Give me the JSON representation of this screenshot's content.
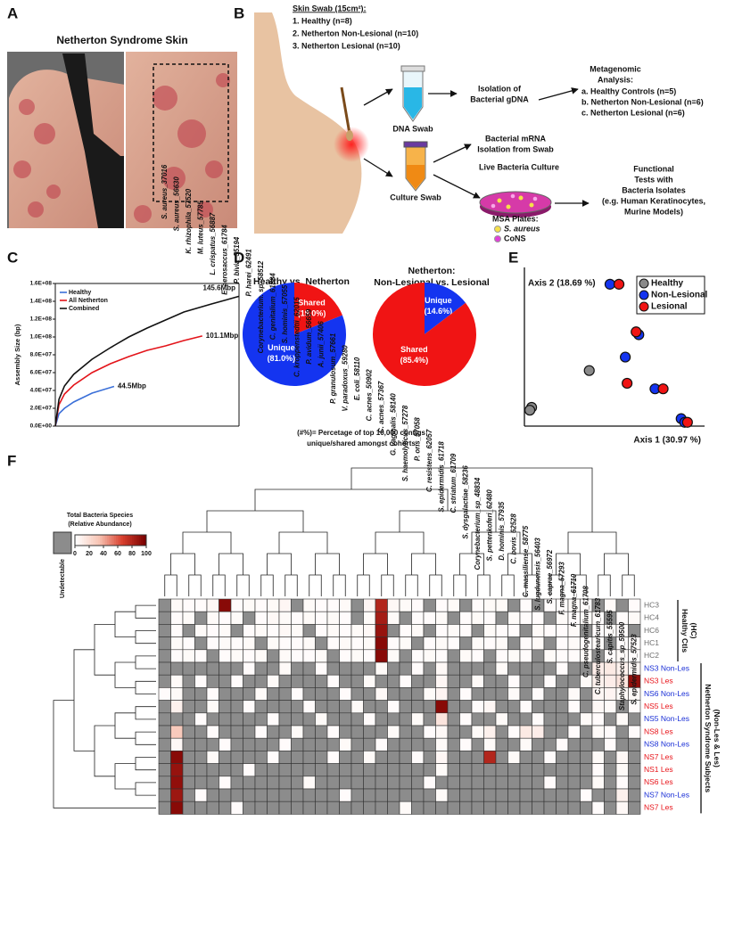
{
  "figure": {
    "a": {
      "panel": "A",
      "title": "Netherton Syndrome Skin"
    },
    "b": {
      "panel": "B",
      "swab_title": "Skin Swab (15cm²):",
      "swab_groups": [
        "1. Healthy (n=8)",
        "2. Netherton Non-Lesional  (n=10)",
        "3. Netherton Lesional  (n=10)"
      ],
      "dna_swab": "DNA Swab",
      "culture_swab": "Culture Swab",
      "gdna": [
        "Isolation of",
        "Bacterial gDNA"
      ],
      "metagenomic": [
        "Metagenomic",
        "Analysis:"
      ],
      "metagenomic_groups": [
        "a. Healthy Controls (n=5)",
        "b. Netherton Non-Lesional (n=6)",
        "c. Netherton Lesional (n=6)"
      ],
      "mrna": [
        "Bacterial mRNA",
        "Isolation from Swab"
      ],
      "culture": "Live Bacteria Culture",
      "msa": "MSA Plates:",
      "msa_items": [
        "S. aureus",
        "CoNS"
      ],
      "functional": [
        "Functional",
        "Tests with",
        "Bacteria Isolates",
        "(e.g. Human Keratinocytes,",
        "Murine Models)"
      ]
    }
  },
  "chart_data": [
    {
      "type": "line",
      "panel": "C",
      "ylabel": "Assembly Size (bp)",
      "xlim": [
        0,
        10
      ],
      "ylim": [
        0,
        160000000
      ],
      "yticks": [
        {
          "value": 0,
          "label": "0.0E+00"
        },
        {
          "value": 20000000,
          "label": "2.0E+07"
        },
        {
          "value": 40000000,
          "label": "4.0E+07"
        },
        {
          "value": 60000000,
          "label": "6.0E+07"
        },
        {
          "value": 80000000,
          "label": "8.0E+07"
        },
        {
          "value": 100000000,
          "label": "1.0E+08"
        },
        {
          "value": 120000000,
          "label": "1.2E+08"
        },
        {
          "value": 140000000,
          "label": "1.4E+08"
        },
        {
          "value": 160000000,
          "label": "1.6E+08"
        }
      ],
      "series": [
        {
          "name": "Healthy",
          "color": "#3a6fd8",
          "end_label": "44.5Mbp",
          "x": [
            0,
            0.2,
            0.5,
            1,
            2,
            3.2
          ],
          "values": [
            0,
            14000000,
            20000000,
            27000000,
            37000000,
            44500000
          ]
        },
        {
          "name": "All Netherton",
          "color": "#e3141a",
          "end_label": "101.1Mbp",
          "x": [
            0,
            0.2,
            0.5,
            1,
            2,
            3,
            4,
            5,
            6,
            7,
            8
          ],
          "values": [
            0,
            24000000,
            36000000,
            46000000,
            60000000,
            70000000,
            78000000,
            85000000,
            90000000,
            96000000,
            101100000
          ]
        },
        {
          "name": "Combined",
          "color": "#111111",
          "end_label": "145.6Mbp",
          "x": [
            0,
            0.2,
            0.5,
            1,
            2,
            3,
            4,
            5,
            6,
            7,
            8.5,
            10
          ],
          "values": [
            0,
            30000000,
            45000000,
            58000000,
            75000000,
            88000000,
            100000000,
            110000000,
            119000000,
            128000000,
            137000000,
            145600000
          ]
        }
      ]
    },
    {
      "type": "pie",
      "panel": "D",
      "title": [
        "Healthy vs. Netherton"
      ],
      "categories": [
        "Shared",
        "Unique"
      ],
      "values": [
        19.0,
        81.0
      ],
      "value_labels": [
        "(19.0%)",
        "(81.0%)"
      ],
      "colors": [
        "#f01414",
        "#1434f0"
      ],
      "note": [
        "(#%)= Percetage of top 10,000 contigs",
        "unique/shared amongst cohorts"
      ]
    },
    {
      "type": "pie",
      "title": [
        "Netherton:",
        "Non-Lesional vs. Lesional"
      ],
      "categories": [
        "Unique",
        "Shared"
      ],
      "values": [
        14.6,
        85.4
      ],
      "value_labels": [
        "(14.6%)",
        "(85.4%)"
      ],
      "colors": [
        "#1434f0",
        "#f01414"
      ]
    },
    {
      "type": "scatter",
      "panel": "E",
      "xlabel": "Axis 1 (30.97 %)",
      "ylabel": "Axis 2 (18.69 %)",
      "xlim": [
        0,
        1
      ],
      "ylim": [
        0,
        1
      ],
      "series": [
        {
          "name": "Healthy",
          "color": "#8a8a8a",
          "x": [
            0.04,
            0.03,
            0.36
          ],
          "values": [
            0.118,
            0.1,
            0.35
          ]
        },
        {
          "name": "Non-Lesional",
          "color": "#1434f0",
          "x": [
            0.475,
            0.635,
            0.56,
            0.725,
            0.87,
            0.89
          ],
          "values": [
            0.894,
            0.576,
            0.435,
            0.235,
            0.047,
            0.024
          ]
        },
        {
          "name": "Lesional",
          "color": "#f01414",
          "x": [
            0.525,
            0.62,
            0.57,
            0.77,
            0.905
          ],
          "values": [
            0.894,
            0.594,
            0.27,
            0.235,
            0.024
          ]
        }
      ]
    },
    {
      "type": "heatmap",
      "panel": "F",
      "colorbar_title": [
        "Total Bacteria Species",
        "(Relative Abundance)"
      ],
      "undetectable_label": "Undetectable",
      "null_color": "#8c8c8c",
      "colormap": [
        "#ffffff",
        "#f7c4b4",
        "#d8402e",
        "#7a0000"
      ],
      "clim": [
        0,
        100
      ],
      "cbar_ticks": [
        0,
        20,
        40,
        60,
        80,
        100
      ],
      "rows": [
        "HC3",
        "HC4",
        "HC6",
        "HC1",
        "HC2",
        "NS3 Non-Les",
        "NS3 Les",
        "NS6 Non-Les",
        "NS5 Les",
        "NS5 Non-Les",
        "NS8 Les",
        "NS8 Non-Les",
        "NS7 Les",
        "NS1 Les",
        "NS6 Les",
        "NS7 Non-Les",
        "NS7 Les"
      ],
      "row_colors": [
        "#6e6e6e",
        "#6e6e6e",
        "#6e6e6e",
        "#6e6e6e",
        "#6e6e6e",
        "#1a2fd6",
        "#e8141a",
        "#1a2fd6",
        "#e8141a",
        "#1a2fd6",
        "#e8141a",
        "#1a2fd6",
        "#e8141a",
        "#e8141a",
        "#e8141a",
        "#1a2fd6",
        "#e8141a"
      ],
      "row_groups": [
        {
          "label": [
            "Healthy Ctls",
            "(HC)"
          ],
          "size": 5
        },
        {
          "label": [
            "Netherton Syndrome Subjects",
            "(Non-Les & Les)"
          ],
          "size": 12
        }
      ],
      "columns": [
        "S. aureus_37016",
        "S. aureus_56630",
        "K. rhizophila_57520",
        "M. luteus_57785",
        "L. crispatus_56887",
        "E. aerosaccus_61784",
        "P. bivia_55194",
        "P. harei_62491",
        "Corynebacterium. sp_58512",
        "C. genitalium_61884",
        "S. hominis_57055",
        "C. kroppenstedtii_62015",
        "P. avidum_56659",
        "A. junii_57406",
        "P. granulosum_57661",
        "V. paradoxus_59280",
        "E. coli_58110",
        "C. acnes_50902",
        "C. acnes_57367",
        "G. vaginalis_58140",
        "S. haemolyticus_57278",
        "P. oris_57058",
        "C. resistens_62057",
        "S. epidermidis_61718",
        "C. striatum_61709",
        "S. dysgalactiae_58236",
        "Corynebacterium_sp_48834",
        "S. pettenkoferi_62480",
        "D. hominis_57935",
        "C. bovis_62528",
        "C. massiliense_58775",
        "S. lugdunensis_56403",
        "S. caprae_56972",
        "F. magna_57293",
        "F. magna_61710",
        "C. pseudogenitalium_61708",
        "C. tuberculostearicum_61783",
        "S. capitis_55595",
        "Staphylococcus_sp_59500",
        "S. epidermidis_57523"
      ],
      "values": [
        [
          null,
          3,
          2,
          2,
          4,
          95,
          2,
          3,
          2,
          3,
          5,
          null,
          3,
          2,
          2,
          3,
          null,
          5,
          80,
          4,
          3,
          2,
          null,
          2,
          3,
          null,
          2,
          3,
          3,
          null,
          2,
          null,
          2,
          2,
          3,
          2,
          null,
          3,
          null,
          2
        ],
        [
          null,
          2,
          3,
          null,
          3,
          2,
          3,
          null,
          2,
          4,
          3,
          2,
          3,
          2,
          3,
          2,
          null,
          3,
          85,
          3,
          null,
          2,
          2,
          3,
          null,
          2,
          3,
          2,
          null,
          3,
          2,
          2,
          null,
          3,
          2,
          3,
          2,
          null,
          2,
          3
        ],
        [
          null,
          2,
          null,
          3,
          2,
          3,
          null,
          2,
          3,
          2,
          4,
          3,
          null,
          2,
          3,
          2,
          3,
          4,
          90,
          null,
          2,
          3,
          null,
          2,
          3,
          2,
          null,
          3,
          2,
          2,
          null,
          3,
          2,
          2,
          3,
          null,
          2,
          3,
          2,
          null
        ],
        [
          null,
          3,
          2,
          null,
          2,
          3,
          2,
          3,
          null,
          3,
          2,
          2,
          3,
          null,
          2,
          3,
          2,
          3,
          95,
          2,
          3,
          null,
          2,
          3,
          2,
          null,
          3,
          2,
          3,
          null,
          2,
          3,
          null,
          2,
          3,
          2,
          3,
          null,
          2,
          2
        ],
        [
          null,
          2,
          3,
          2,
          null,
          2,
          3,
          2,
          3,
          null,
          3,
          2,
          2,
          3,
          null,
          2,
          3,
          2,
          95,
          3,
          null,
          2,
          3,
          2,
          null,
          3,
          2,
          null,
          2,
          3,
          2,
          null,
          3,
          2,
          2,
          3,
          null,
          2,
          3,
          2
        ],
        [
          null,
          null,
          null,
          null,
          null,
          null,
          null,
          2,
          null,
          null,
          3,
          null,
          null,
          2,
          null,
          null,
          null,
          null,
          3,
          null,
          null,
          2,
          null,
          4,
          null,
          null,
          null,
          null,
          3,
          null,
          null,
          null,
          null,
          2,
          null,
          null,
          10,
          12,
          8,
          5
        ],
        [
          null,
          3,
          null,
          2,
          null,
          null,
          2,
          null,
          null,
          3,
          null,
          null,
          null,
          null,
          2,
          null,
          null,
          3,
          null,
          null,
          2,
          null,
          null,
          5,
          null,
          null,
          3,
          null,
          null,
          2,
          null,
          null,
          2,
          null,
          null,
          3,
          8,
          10,
          15,
          92
        ],
        [
          2,
          3,
          null,
          null,
          2,
          null,
          null,
          null,
          3,
          null,
          null,
          2,
          null,
          null,
          null,
          2,
          null,
          null,
          4,
          null,
          null,
          null,
          3,
          6,
          null,
          2,
          null,
          null,
          null,
          3,
          null,
          2,
          null,
          null,
          3,
          null,
          5,
          6,
          3,
          4
        ],
        [
          null,
          8,
          null,
          null,
          3,
          null,
          null,
          2,
          null,
          null,
          null,
          null,
          2,
          null,
          null,
          null,
          3,
          null,
          null,
          2,
          null,
          null,
          null,
          95,
          null,
          null,
          2,
          5,
          null,
          null,
          2,
          null,
          null,
          null,
          2,
          null,
          4,
          3,
          null,
          2
        ],
        [
          null,
          null,
          null,
          2,
          null,
          null,
          null,
          null,
          null,
          2,
          null,
          null,
          null,
          3,
          null,
          null,
          null,
          2,
          null,
          null,
          null,
          3,
          null,
          15,
          null,
          2,
          null,
          null,
          3,
          null,
          null,
          2,
          null,
          null,
          null,
          3,
          2,
          null,
          3,
          null
        ],
        [
          null,
          30,
          null,
          null,
          2,
          null,
          null,
          null,
          2,
          null,
          null,
          3,
          null,
          null,
          2,
          null,
          null,
          null,
          null,
          3,
          null,
          null,
          2,
          4,
          null,
          null,
          3,
          8,
          null,
          2,
          12,
          10,
          null,
          null,
          2,
          null,
          3,
          2,
          null,
          2
        ],
        [
          null,
          4,
          null,
          null,
          null,
          2,
          null,
          null,
          null,
          null,
          2,
          null,
          null,
          null,
          null,
          3,
          null,
          null,
          2,
          null,
          null,
          null,
          null,
          3,
          null,
          2,
          null,
          3,
          null,
          null,
          3,
          null,
          null,
          2,
          null,
          null,
          null,
          2,
          null,
          null
        ],
        [
          null,
          95,
          null,
          null,
          3,
          null,
          null,
          null,
          null,
          2,
          null,
          null,
          null,
          null,
          2,
          null,
          null,
          3,
          null,
          null,
          null,
          2,
          null,
          5,
          null,
          null,
          null,
          80,
          null,
          3,
          null,
          null,
          2,
          null,
          null,
          null,
          3,
          null,
          4,
          null
        ],
        [
          null,
          90,
          null,
          null,
          null,
          null,
          null,
          2,
          null,
          null,
          null,
          null,
          null,
          null,
          null,
          null,
          null,
          null,
          null,
          null,
          null,
          null,
          null,
          3,
          null,
          null,
          null,
          null,
          null,
          null,
          null,
          null,
          null,
          null,
          null,
          null,
          2,
          null,
          3,
          null
        ],
        [
          null,
          92,
          null,
          null,
          null,
          2,
          null,
          null,
          null,
          null,
          null,
          null,
          3,
          null,
          null,
          null,
          null,
          null,
          null,
          null,
          null,
          null,
          2,
          null,
          null,
          null,
          null,
          null,
          null,
          null,
          null,
          null,
          2,
          null,
          null,
          null,
          3,
          null,
          2,
          null
        ],
        [
          null,
          88,
          null,
          2,
          null,
          null,
          null,
          null,
          null,
          null,
          null,
          null,
          null,
          null,
          null,
          2,
          null,
          null,
          null,
          null,
          null,
          null,
          null,
          3,
          null,
          null,
          null,
          null,
          null,
          null,
          null,
          null,
          null,
          null,
          null,
          2,
          null,
          null,
          8,
          null
        ],
        [
          null,
          95,
          null,
          null,
          null,
          null,
          2,
          null,
          null,
          null,
          null,
          null,
          null,
          null,
          null,
          null,
          null,
          null,
          null,
          null,
          3,
          null,
          null,
          null,
          null,
          null,
          null,
          null,
          null,
          null,
          null,
          null,
          null,
          null,
          null,
          null,
          2,
          null,
          4,
          null
        ]
      ]
    }
  ]
}
